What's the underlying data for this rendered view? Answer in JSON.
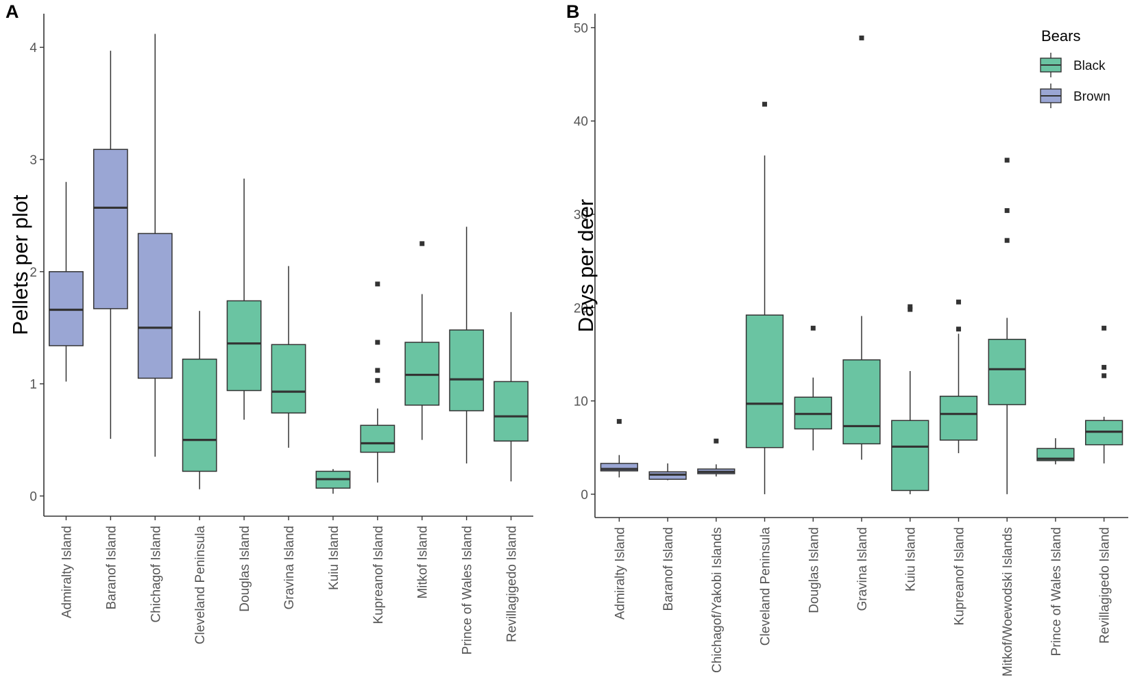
{
  "chart_data": [
    {
      "panel": "A",
      "type": "boxplot",
      "ylabel": "Pellets per plot",
      "xlabel": "",
      "ylim": [
        -0.18,
        4.3
      ],
      "yticks": [
        0,
        1,
        2,
        3,
        4
      ],
      "categories": [
        "Admiralty Island",
        "Baranof Island",
        "Chichagof Island",
        "Cleveland Peninsula",
        "Douglas Island",
        "Gravina Island",
        "Kuiu Island",
        "Kupreanof Island",
        "Mitkof Island",
        "Prince of Wales Island",
        "Revillagigedo Island"
      ],
      "boxes": [
        {
          "bear": "Brown",
          "min": 1.02,
          "q1": 1.34,
          "median": 1.66,
          "q3": 2.0,
          "max": 2.8,
          "outliers": []
        },
        {
          "bear": "Brown",
          "min": 0.51,
          "q1": 1.67,
          "median": 2.57,
          "q3": 3.09,
          "max": 3.97,
          "outliers": []
        },
        {
          "bear": "Brown",
          "min": 0.35,
          "q1": 1.05,
          "median": 1.5,
          "q3": 2.34,
          "max": 4.12,
          "outliers": []
        },
        {
          "bear": "Black",
          "min": 0.06,
          "q1": 0.22,
          "median": 0.5,
          "q3": 1.22,
          "max": 1.65,
          "outliers": []
        },
        {
          "bear": "Black",
          "min": 0.68,
          "q1": 0.94,
          "median": 1.36,
          "q3": 1.74,
          "max": 2.83,
          "outliers": []
        },
        {
          "bear": "Black",
          "min": 0.43,
          "q1": 0.74,
          "median": 0.93,
          "q3": 1.35,
          "max": 2.05,
          "outliers": []
        },
        {
          "bear": "Black",
          "min": 0.02,
          "q1": 0.07,
          "median": 0.15,
          "q3": 0.22,
          "max": 0.24,
          "outliers": []
        },
        {
          "bear": "Black",
          "min": 0.12,
          "q1": 0.39,
          "median": 0.47,
          "q3": 0.63,
          "max": 0.78,
          "outliers": [
            1.03,
            1.12,
            1.37,
            1.89
          ]
        },
        {
          "bear": "Black",
          "min": 0.5,
          "q1": 0.81,
          "median": 1.08,
          "q3": 1.37,
          "max": 1.8,
          "outliers": [
            2.25
          ]
        },
        {
          "bear": "Black",
          "min": 0.29,
          "q1": 0.76,
          "median": 1.04,
          "q3": 1.48,
          "max": 2.4,
          "outliers": []
        },
        {
          "bear": "Black",
          "min": 0.13,
          "q1": 0.49,
          "median": 0.71,
          "q3": 1.02,
          "max": 1.64,
          "outliers": []
        }
      ]
    },
    {
      "panel": "B",
      "type": "boxplot",
      "ylabel": "Days per deer",
      "xlabel": "",
      "ylim": [
        -2.5,
        51.5
      ],
      "yticks": [
        0,
        10,
        20,
        30,
        40,
        50
      ],
      "categories": [
        "Admiralty Island",
        "Baranof Island",
        "Chichagof/Yakobi Islands",
        "Cleveland Peninsula",
        "Douglas Island",
        "Gravina Island",
        "Kuiu Island",
        "Kupreanof Island",
        "Mitkof/Woewodski Islands",
        "Prince of Wales Island",
        "Revillagigedo Island"
      ],
      "boxes": [
        {
          "bear": "Brown",
          "min": 1.8,
          "q1": 2.5,
          "median": 2.7,
          "q3": 3.3,
          "max": 4.2,
          "outliers": [
            7.8
          ]
        },
        {
          "bear": "Brown",
          "min": 1.5,
          "q1": 1.6,
          "median": 2.1,
          "q3": 2.4,
          "max": 3.3,
          "outliers": []
        },
        {
          "bear": "Brown",
          "min": 1.9,
          "q1": 2.2,
          "median": 2.4,
          "q3": 2.7,
          "max": 3.2,
          "outliers": [
            5.7
          ]
        },
        {
          "bear": "Black",
          "min": 0.0,
          "q1": 5.0,
          "median": 9.7,
          "q3": 19.2,
          "max": 36.3,
          "outliers": [
            41.8
          ]
        },
        {
          "bear": "Black",
          "min": 4.7,
          "q1": 7.0,
          "median": 8.6,
          "q3": 10.4,
          "max": 12.5,
          "outliers": [
            17.8
          ]
        },
        {
          "bear": "Black",
          "min": 3.7,
          "q1": 5.4,
          "median": 7.3,
          "q3": 14.4,
          "max": 19.1,
          "outliers": [
            48.9
          ]
        },
        {
          "bear": "Black",
          "min": 0.0,
          "q1": 0.4,
          "median": 5.1,
          "q3": 7.9,
          "max": 13.2,
          "outliers": [
            19.8,
            20.1
          ]
        },
        {
          "bear": "Black",
          "min": 4.4,
          "q1": 5.8,
          "median": 8.6,
          "q3": 10.5,
          "max": 17.2,
          "outliers": [
            17.7,
            20.6
          ]
        },
        {
          "bear": "Black",
          "min": 0.0,
          "q1": 9.6,
          "median": 13.4,
          "q3": 16.6,
          "max": 18.9,
          "outliers": [
            27.2,
            30.4,
            35.8
          ]
        },
        {
          "bear": "Black",
          "min": 3.2,
          "q1": 3.6,
          "median": 3.8,
          "q3": 4.9,
          "max": 6.0,
          "outliers": []
        },
        {
          "bear": "Black",
          "min": 3.3,
          "q1": 5.3,
          "median": 6.7,
          "q3": 7.9,
          "max": 8.3,
          "outliers": [
            12.7,
            13.6,
            17.8
          ]
        }
      ]
    }
  ],
  "legend": {
    "title": "Bears",
    "items": [
      {
        "label": "Black",
        "color": "#66c2a5"
      },
      {
        "label": "Brown",
        "color": "#8da0cb"
      }
    ]
  },
  "colors": {
    "Black": "#6ac4a2",
    "Brown": "#9aa6d4",
    "stroke": "#333333",
    "axis": "#333333"
  }
}
